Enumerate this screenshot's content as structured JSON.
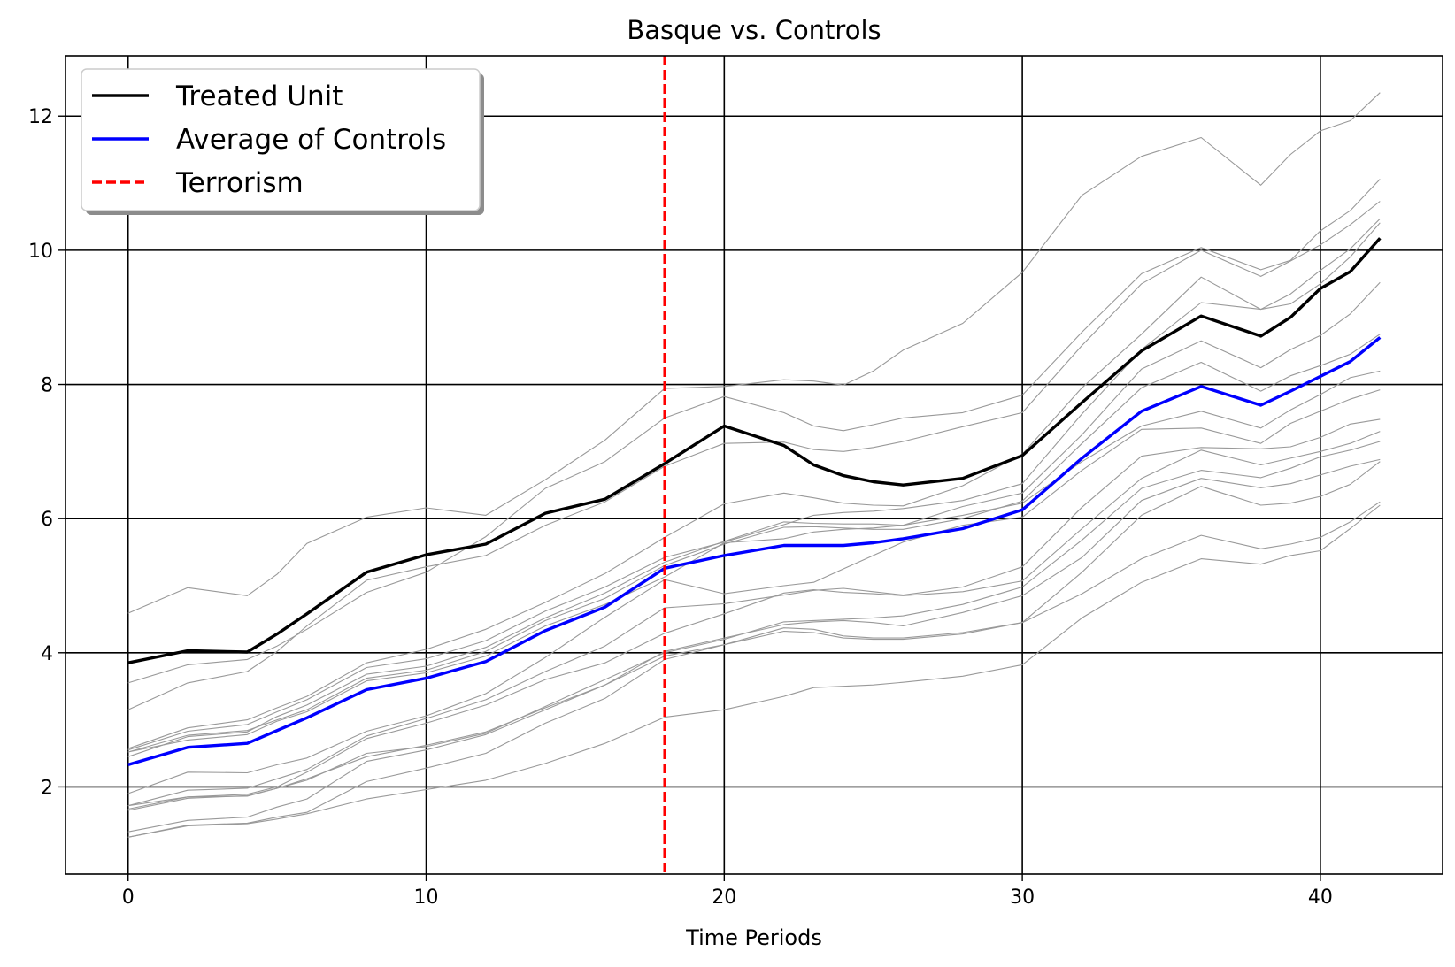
{
  "chart_data": {
    "type": "line",
    "title": "Basque vs. Controls",
    "xlabel": "Time Periods",
    "ylabel": "",
    "xlim": [
      -2.1,
      44.1
    ],
    "ylim": [
      0.7,
      12.9
    ],
    "xticks": [
      0,
      10,
      20,
      30,
      40
    ],
    "yticks": [
      2,
      4,
      6,
      8,
      10,
      12
    ],
    "grid": true,
    "legend": {
      "placement": "upper-left",
      "entries": [
        {
          "label": "Treated Unit",
          "color": "#000000",
          "style": "solid"
        },
        {
          "label": "Average of Controls",
          "color": "#0000ff",
          "style": "solid"
        },
        {
          "label": "Terrorism",
          "color": "#ff0000",
          "style": "dashed"
        }
      ]
    },
    "vline": {
      "x": 18,
      "label": "Terrorism",
      "color": "#ff0000"
    },
    "x": [
      0,
      2,
      4,
      5,
      6,
      8,
      10,
      12,
      14,
      16,
      18,
      20,
      22,
      23,
      24,
      25,
      26,
      28,
      30,
      32,
      34,
      36,
      38,
      39,
      40,
      41,
      42
    ],
    "series": [
      {
        "name": "Treated Unit",
        "color": "#000000",
        "role": "treated",
        "values": [
          3.85,
          4.03,
          4.01,
          4.28,
          4.58,
          5.2,
          5.46,
          5.62,
          6.08,
          6.29,
          6.82,
          7.38,
          7.09,
          6.8,
          6.64,
          6.55,
          6.5,
          6.6,
          6.94,
          7.73,
          8.5,
          9.02,
          8.72,
          9.0,
          9.43,
          9.68,
          10.18
        ]
      },
      {
        "name": "Average of Controls",
        "color": "#0000ff",
        "role": "average",
        "values": [
          2.33,
          2.59,
          2.65,
          2.84,
          3.03,
          3.45,
          3.62,
          3.87,
          4.33,
          4.68,
          5.26,
          5.45,
          5.6,
          5.6,
          5.6,
          5.64,
          5.7,
          5.85,
          6.13,
          6.9,
          7.6,
          7.97,
          7.69,
          7.9,
          8.12,
          8.34,
          8.7
        ]
      },
      {
        "color": "#999999",
        "role": "control",
        "values": [
          4.59,
          4.97,
          4.85,
          5.17,
          5.63,
          6.02,
          6.16,
          6.05,
          6.58,
          7.17,
          7.94,
          7.97,
          8.07,
          8.05,
          7.99,
          8.2,
          8.51,
          8.91,
          9.67,
          10.82,
          11.4,
          11.68,
          10.97,
          11.43,
          11.78,
          11.93,
          12.35
        ]
      },
      {
        "color": "#999999",
        "role": "control",
        "values": [
          3.55,
          3.82,
          3.9,
          4.1,
          4.35,
          4.9,
          5.2,
          5.73,
          6.45,
          6.85,
          7.5,
          7.82,
          7.58,
          7.38,
          7.31,
          7.4,
          7.5,
          7.58,
          7.84,
          8.78,
          9.65,
          10.04,
          9.71,
          9.85,
          10.29,
          10.59,
          11.06
        ]
      },
      {
        "color": "#999999",
        "role": "control",
        "values": [
          3.15,
          3.55,
          3.72,
          4.02,
          4.4,
          5.08,
          5.28,
          5.45,
          5.9,
          6.25,
          6.78,
          7.12,
          7.14,
          7.03,
          7.0,
          7.06,
          7.15,
          7.37,
          7.58,
          8.58,
          9.5,
          10.0,
          9.61,
          9.84,
          10.08,
          10.38,
          10.73
        ]
      },
      {
        "color": "#999999",
        "role": "control",
        "values": [
          2.57,
          2.88,
          3.0,
          3.18,
          3.35,
          3.85,
          4.05,
          4.35,
          4.75,
          5.18,
          5.72,
          6.22,
          6.38,
          6.31,
          6.23,
          6.2,
          6.19,
          6.49,
          6.96,
          7.95,
          8.75,
          9.6,
          9.12,
          9.35,
          9.7,
          10.02,
          10.47
        ]
      },
      {
        "color": "#999999",
        "role": "control",
        "values": [
          2.55,
          2.83,
          2.93,
          3.12,
          3.3,
          3.78,
          3.91,
          4.18,
          4.62,
          4.98,
          5.42,
          5.65,
          5.91,
          6.05,
          6.09,
          6.11,
          6.15,
          6.27,
          6.52,
          7.56,
          8.52,
          9.22,
          9.12,
          9.2,
          9.5,
          9.9,
          10.41
        ]
      },
      {
        "color": "#999999",
        "role": "control",
        "values": [
          2.45,
          2.75,
          2.82,
          3.05,
          3.22,
          3.68,
          3.8,
          4.08,
          4.52,
          4.89,
          5.35,
          5.66,
          5.95,
          5.93,
          5.92,
          5.92,
          5.9,
          6.18,
          6.38,
          7.25,
          8.23,
          8.65,
          8.25,
          8.52,
          8.73,
          9.05,
          9.52
        ]
      },
      {
        "color": "#999999",
        "role": "control",
        "values": [
          2.52,
          2.77,
          2.84,
          3.0,
          3.15,
          3.62,
          3.74,
          4.02,
          4.48,
          4.81,
          5.3,
          5.62,
          5.87,
          5.88,
          5.86,
          5.84,
          5.84,
          6.0,
          6.26,
          7.12,
          7.95,
          8.33,
          7.9,
          8.13,
          8.28,
          8.45,
          8.75
        ]
      },
      {
        "color": "#999999",
        "role": "control",
        "values": [
          2.52,
          2.7,
          2.78,
          2.98,
          3.12,
          3.58,
          3.7,
          3.95,
          4.4,
          4.72,
          5.13,
          5.64,
          5.7,
          5.8,
          5.84,
          5.86,
          5.9,
          6.05,
          6.23,
          6.85,
          7.38,
          7.6,
          7.35,
          7.62,
          7.85,
          8.1,
          8.2
        ]
      },
      {
        "color": "#999999",
        "role": "control",
        "values": [
          1.9,
          2.22,
          2.21,
          2.33,
          2.43,
          2.83,
          3.06,
          3.39,
          3.93,
          4.53,
          5.09,
          4.88,
          5.0,
          5.05,
          5.25,
          5.45,
          5.65,
          5.9,
          6.02,
          6.72,
          7.33,
          7.35,
          7.12,
          7.42,
          7.6,
          7.78,
          7.92
        ]
      },
      {
        "color": "#999999",
        "role": "control",
        "values": [
          1.72,
          1.95,
          1.98,
          2.12,
          2.26,
          2.76,
          3.02,
          3.3,
          3.72,
          4.1,
          4.67,
          4.73,
          4.86,
          4.93,
          4.96,
          4.91,
          4.86,
          4.98,
          5.28,
          6.17,
          6.93,
          7.06,
          7.04,
          7.07,
          7.21,
          7.41,
          7.48
        ]
      },
      {
        "color": "#999999",
        "role": "control",
        "values": [
          1.72,
          1.85,
          1.89,
          2.0,
          2.22,
          2.72,
          2.95,
          3.22,
          3.6,
          3.85,
          4.29,
          4.58,
          4.89,
          4.94,
          4.9,
          4.88,
          4.85,
          4.91,
          5.07,
          5.85,
          6.6,
          7.02,
          6.8,
          6.9,
          7.0,
          7.12,
          7.3
        ]
      },
      {
        "color": "#999999",
        "role": "control",
        "values": [
          1.65,
          1.83,
          1.87,
          1.98,
          2.1,
          2.5,
          2.6,
          2.8,
          3.2,
          3.6,
          4.0,
          4.2,
          4.46,
          4.48,
          4.5,
          4.52,
          4.55,
          4.72,
          4.98,
          5.68,
          6.45,
          6.72,
          6.61,
          6.75,
          6.92,
          7.02,
          7.15
        ]
      },
      {
        "color": "#999999",
        "role": "control",
        "values": [
          1.67,
          1.85,
          1.86,
          1.98,
          2.12,
          2.45,
          2.62,
          2.82,
          3.18,
          3.52,
          4.02,
          4.22,
          4.42,
          4.46,
          4.48,
          4.45,
          4.4,
          4.6,
          4.85,
          5.42,
          6.27,
          6.6,
          6.46,
          6.52,
          6.65,
          6.78,
          6.88
        ]
      },
      {
        "color": "#999999",
        "role": "control",
        "values": [
          1.33,
          1.5,
          1.55,
          1.7,
          1.82,
          2.38,
          2.55,
          2.78,
          3.15,
          3.52,
          3.95,
          4.12,
          4.37,
          4.35,
          4.25,
          4.22,
          4.22,
          4.3,
          4.45,
          5.2,
          6.05,
          6.48,
          6.2,
          6.23,
          6.33,
          6.51,
          6.85
        ]
      },
      {
        "color": "#999999",
        "role": "control",
        "values": [
          1.25,
          1.43,
          1.46,
          1.55,
          1.62,
          2.08,
          2.28,
          2.5,
          2.95,
          3.32,
          3.9,
          4.12,
          4.32,
          4.3,
          4.22,
          4.2,
          4.2,
          4.28,
          4.45,
          4.88,
          5.4,
          5.75,
          5.55,
          5.62,
          5.72,
          5.95,
          6.25
        ]
      },
      {
        "color": "#999999",
        "role": "control",
        "values": [
          1.25,
          1.42,
          1.45,
          1.52,
          1.6,
          1.82,
          1.96,
          2.1,
          2.35,
          2.65,
          3.04,
          3.15,
          3.35,
          3.48,
          3.5,
          3.52,
          3.56,
          3.65,
          3.82,
          4.52,
          5.05,
          5.4,
          5.32,
          5.45,
          5.52,
          5.85,
          6.2
        ]
      }
    ]
  }
}
